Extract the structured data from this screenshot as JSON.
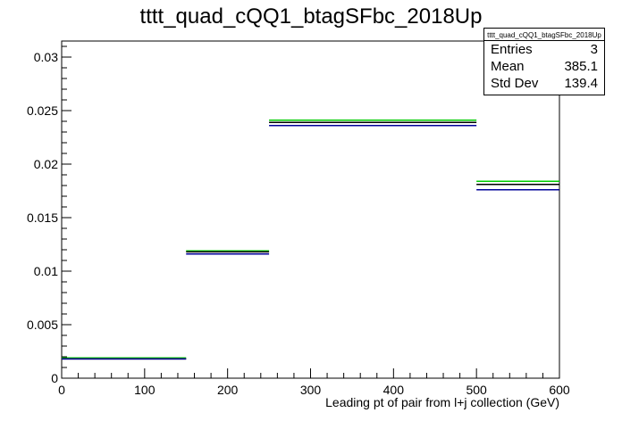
{
  "chart_data": {
    "type": "histogram",
    "title": "tttt_quad_cQQ1_btagSFbc_2018Up",
    "xlabel": "Leading pt of pair from l+j collection (GeV)",
    "ylabel": "",
    "xlim": [
      0,
      600
    ],
    "ylim": [
      0,
      0.0315
    ],
    "x_ticks": [
      0,
      100,
      200,
      300,
      400,
      500,
      600
    ],
    "y_ticks": [
      0,
      0.005,
      0.01,
      0.015,
      0.02,
      0.025,
      0.03
    ],
    "x_tick_labels": [
      "0",
      "100",
      "200",
      "300",
      "400",
      "500",
      "600"
    ],
    "y_tick_labels": [
      "0",
      "0.005",
      "0.01",
      "0.015",
      "0.02",
      "0.025",
      "0.03"
    ],
    "bin_edges": [
      0,
      150,
      250,
      500,
      600
    ],
    "grid": false,
    "series": [
      {
        "color": "#00cc00",
        "values": [
          0.0019,
          0.0119,
          0.0241,
          0.0184
        ]
      },
      {
        "color": "#000000",
        "values": [
          0.0018,
          0.0118,
          0.0239,
          0.0181
        ]
      },
      {
        "color": "#000099",
        "values": [
          0.0018,
          0.0116,
          0.0236,
          0.0176
        ]
      }
    ],
    "stats": {
      "title": "tttt_quad_cQQ1_btagSFbc_2018Up",
      "rows": [
        {
          "label": "Entries",
          "value": "3"
        },
        {
          "label": "Mean",
          "value": "385.1"
        },
        {
          "label": "Std Dev",
          "value": "139.4"
        }
      ]
    }
  }
}
